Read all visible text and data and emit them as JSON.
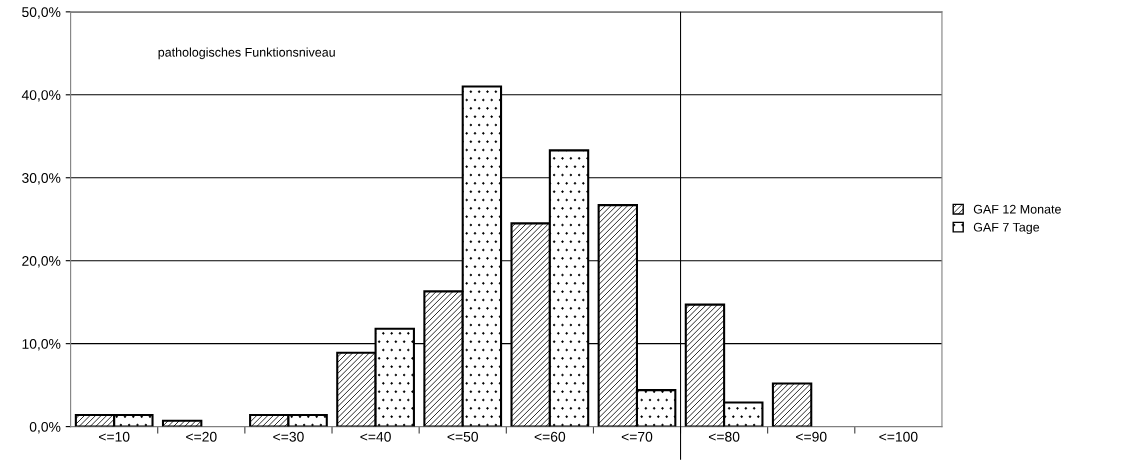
{
  "chart_data": {
    "type": "bar",
    "categories": [
      "<=10",
      "<=20",
      "<=30",
      "<=40",
      "<=50",
      "<=60",
      "<=70",
      "<=80",
      "<=90",
      "<=100"
    ],
    "series": [
      {
        "name": "GAF 12 Monate",
        "color": "#000000",
        "values": [
          1.4,
          0.7,
          1.4,
          8.9,
          16.3,
          24.5,
          26.7,
          14.7,
          5.2,
          0
        ]
      },
      {
        "name": "GAF 7 Tage",
        "color": "#000000",
        "values": [
          1.4,
          0,
          1.4,
          11.8,
          41.0,
          33.3,
          4.4,
          2.9,
          0,
          0
        ]
      }
    ],
    "ylim": [
      0,
      50
    ],
    "yticks": [
      {
        "value": 0,
        "label": "0,0%"
      },
      {
        "value": 10,
        "label": "10,0%"
      },
      {
        "value": 20,
        "label": "20,0%"
      },
      {
        "value": 30,
        "label": "30,0%"
      },
      {
        "value": 40,
        "label": "40,0%"
      },
      {
        "value": 50,
        "label": "50,0%"
      }
    ],
    "grid": "y",
    "legend": "right",
    "annotations": [
      "pathologisches Funktionsniveau"
    ]
  }
}
